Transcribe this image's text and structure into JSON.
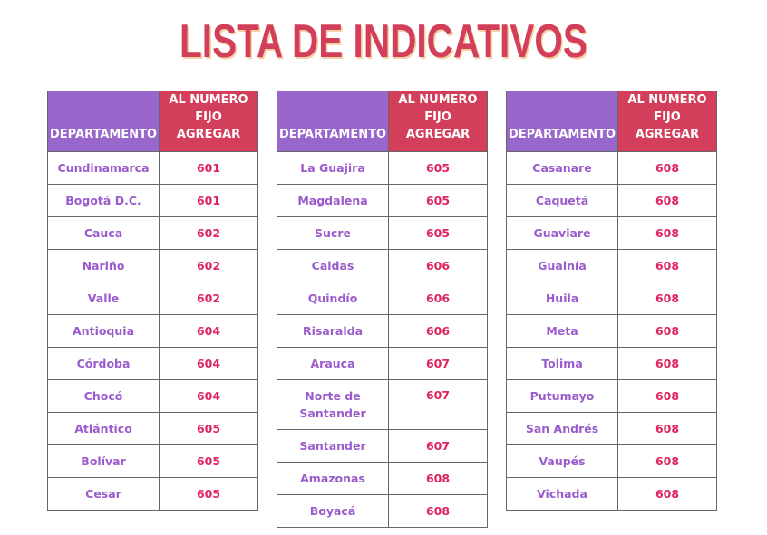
{
  "title": "LISTA DE INDICATIVOS",
  "header": {
    "departamento": "DEPARTAMENTO",
    "numero": "AL NUMERO FIJO AGREGAR"
  },
  "colors": {
    "header_purple": "#9966cc",
    "header_red": "#d33f5a",
    "dept_text": "#9a5ccc",
    "number_text": "#e0245e"
  },
  "tables": [
    [
      [
        "Cundinamarca",
        "601"
      ],
      [
        "Bogotá D.C.",
        "601"
      ],
      [
        "Cauca",
        "602"
      ],
      [
        "Nariño",
        "602"
      ],
      [
        "Valle",
        "602"
      ],
      [
        "Antioquia",
        "604"
      ],
      [
        "Córdoba",
        "604"
      ],
      [
        "Chocó",
        "604"
      ],
      [
        "Atlántico",
        "605"
      ],
      [
        "Bolívar",
        "605"
      ],
      [
        "Cesar",
        "605"
      ]
    ],
    [
      [
        "La Guajira",
        "605"
      ],
      [
        "Magdalena",
        "605"
      ],
      [
        "Sucre",
        "605"
      ],
      [
        "Caldas",
        "606"
      ],
      [
        "Quindío",
        "606"
      ],
      [
        "Risaralda",
        "606"
      ],
      [
        "Arauca",
        "607"
      ],
      [
        "Norte de Santander",
        "607"
      ],
      [
        "Santander",
        "607"
      ],
      [
        "Amazonas",
        "608"
      ],
      [
        "Boyacá",
        "608"
      ]
    ],
    [
      [
        "Casanare",
        "608"
      ],
      [
        "Caquetá",
        "608"
      ],
      [
        "Guaviare",
        "608"
      ],
      [
        "Guainía",
        "608"
      ],
      [
        "Huila",
        "608"
      ],
      [
        "Meta",
        "608"
      ],
      [
        "Tolima",
        "608"
      ],
      [
        "Putumayo",
        "608"
      ],
      [
        "San Andrés",
        "608"
      ],
      [
        "Vaupés",
        "608"
      ],
      [
        "Vichada",
        "608"
      ]
    ]
  ]
}
